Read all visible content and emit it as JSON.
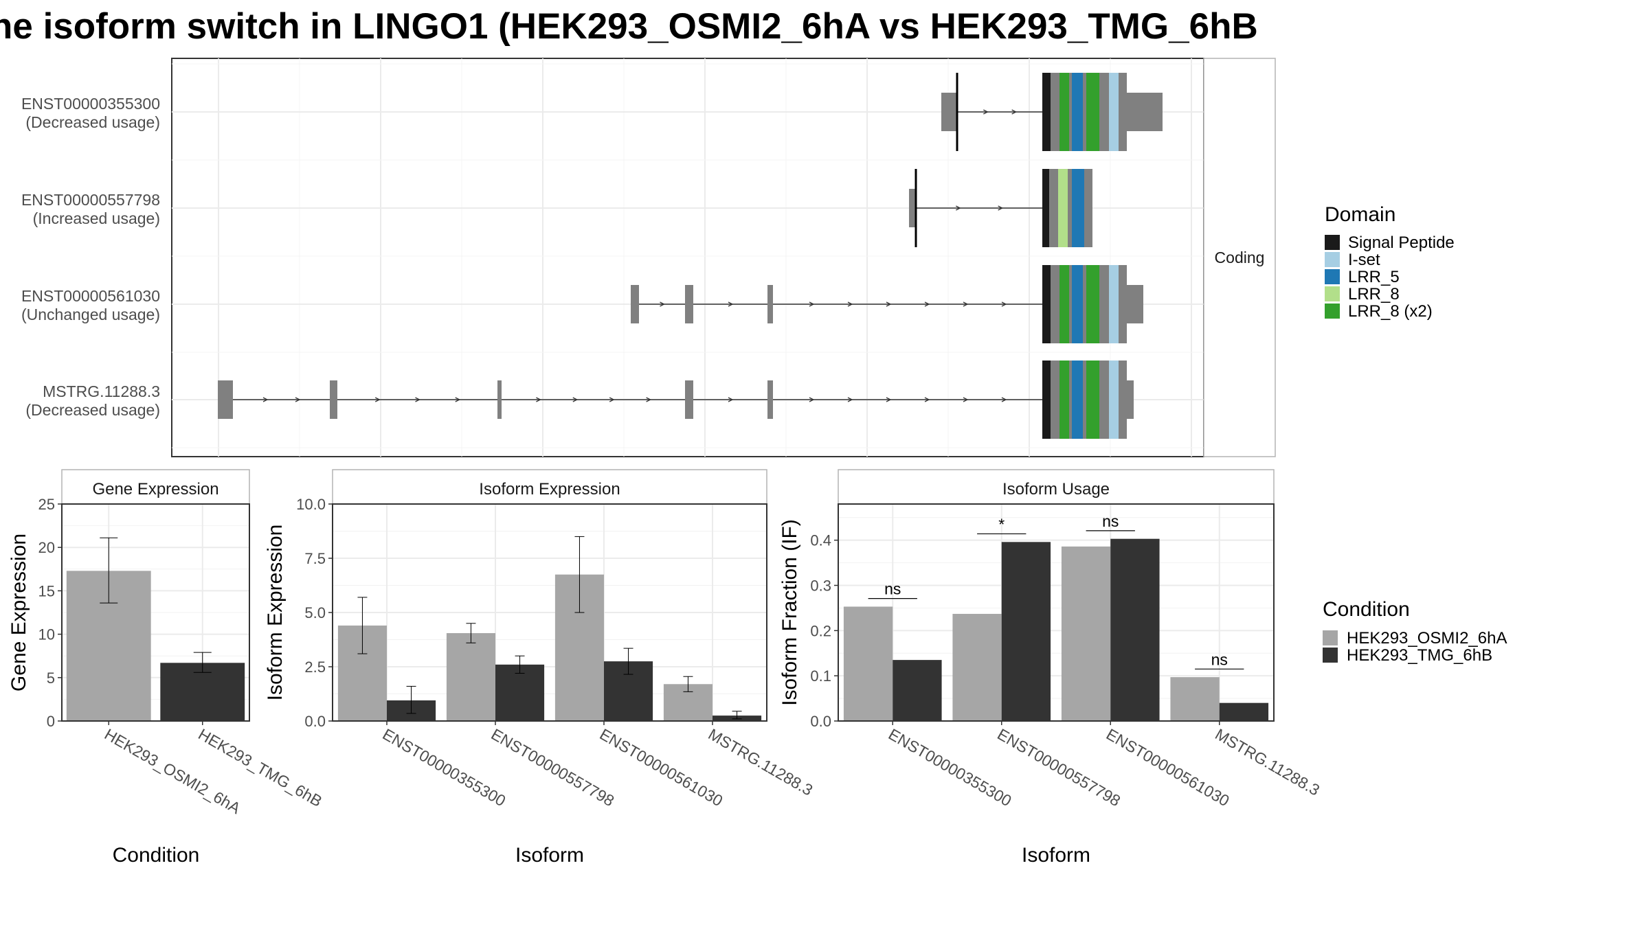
{
  "title": "he isoform switch in LINGO1 (HEK293_OSMI2_6hA vs HEK293_TMG_6hB",
  "transcript_plot": {
    "facet_label": "Coding",
    "isoforms": [
      {
        "id": "ENST00000355300",
        "usage": "(Decreased usage)"
      },
      {
        "id": "ENST00000557798",
        "usage": "(Increased usage)"
      },
      {
        "id": "ENST00000561030",
        "usage": "(Unchanged usage)"
      },
      {
        "id": "MSTRG.11288.3",
        "usage": "(Decreased usage)"
      }
    ],
    "domain_legend": {
      "title": "Domain",
      "items": [
        {
          "label": "Signal Peptide",
          "color": "#1a1a1a"
        },
        {
          "label": "I-set",
          "color": "#a6cee3"
        },
        {
          "label": "LRR_5",
          "color": "#1f78b4"
        },
        {
          "label": "LRR_8",
          "color": "#b2df8a"
        },
        {
          "label": "LRR_8 (x2)",
          "color": "#33a02c"
        }
      ]
    }
  },
  "chart_data": [
    {
      "type": "bar",
      "title": "Gene Expression",
      "xlabel": "Condition",
      "ylabel": "Gene Expression",
      "categories": [
        "HEK293_OSMI2_6hA",
        "HEK293_TMG_6hB"
      ],
      "values": [
        17.3,
        6.7
      ],
      "error_low": [
        13.6,
        5.6
      ],
      "error_high": [
        21.1,
        7.9
      ],
      "ylim": [
        0,
        25
      ],
      "yticks": [
        "0",
        "5",
        "10",
        "15",
        "20",
        "25"
      ],
      "colors": [
        "#a6a6a6",
        "#333333"
      ]
    },
    {
      "type": "bar",
      "title": "Isoform Expression",
      "xlabel": "Isoform",
      "ylabel": "Isoform Expression",
      "categories": [
        "ENST00000355300",
        "ENST00000557798",
        "ENST00000561030",
        "MSTRG.11288.3"
      ],
      "ylim": [
        0,
        10
      ],
      "yticks": [
        "0.0",
        "2.5",
        "5.0",
        "7.5",
        "10.0"
      ],
      "series": [
        {
          "name": "HEK293_OSMI2_6hA",
          "color": "#a6a6a6",
          "values": [
            4.4,
            4.05,
            6.75,
            1.7
          ],
          "error_low": [
            3.1,
            3.6,
            5.0,
            1.35
          ],
          "error_high": [
            5.7,
            4.5,
            8.5,
            2.05
          ]
        },
        {
          "name": "HEK293_TMG_6hB",
          "color": "#333333",
          "values": [
            0.95,
            2.6,
            2.75,
            0.25
          ],
          "error_low": [
            0.35,
            2.2,
            2.15,
            0.1
          ],
          "error_high": [
            1.6,
            3.0,
            3.35,
            0.45
          ]
        }
      ]
    },
    {
      "type": "bar",
      "title": "Isoform Usage",
      "xlabel": "Isoform",
      "ylabel": "Isoform Fraction (IF)",
      "categories": [
        "ENST00000355300",
        "ENST00000557798",
        "ENST00000561030",
        "MSTRG.11288.3"
      ],
      "ylim": [
        0,
        0.48
      ],
      "yticks": [
        "0.0",
        "0.1",
        "0.2",
        "0.3",
        "0.4"
      ],
      "series": [
        {
          "name": "HEK293_OSMI2_6hA",
          "color": "#a6a6a6",
          "values": [
            0.253,
            0.237,
            0.386,
            0.097
          ]
        },
        {
          "name": "HEK293_TMG_6hB",
          "color": "#333333",
          "values": [
            0.135,
            0.396,
            0.403,
            0.04
          ]
        }
      ],
      "significance": [
        "ns",
        "*",
        "ns",
        "ns"
      ]
    }
  ],
  "condition_legend": {
    "title": "Condition",
    "items": [
      {
        "label": "HEK293_OSMI2_6hA",
        "color": "#a6a6a6"
      },
      {
        "label": "HEK293_TMG_6hB",
        "color": "#333333"
      }
    ]
  }
}
